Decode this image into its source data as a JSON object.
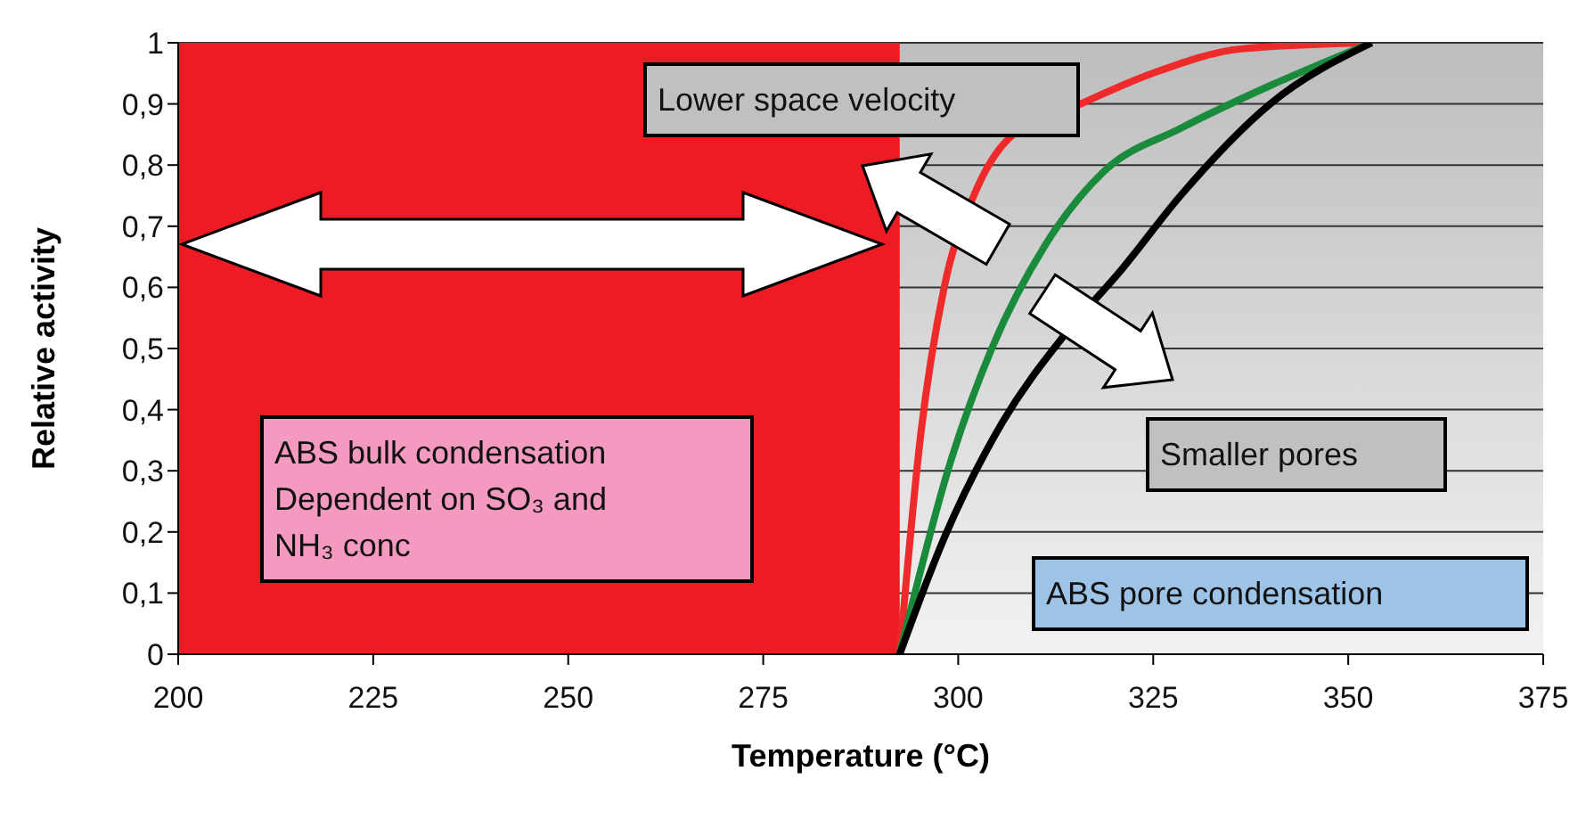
{
  "chart_data": {
    "type": "line",
    "xlabel": "Temperature (°C)",
    "ylabel": "Relative activity",
    "xlim": [
      200,
      375
    ],
    "xticks": [
      200,
      225,
      250,
      275,
      300,
      325,
      350,
      375
    ],
    "ylim": [
      0,
      1
    ],
    "yticks": [
      0,
      {
        "value": 0.1,
        "label": "0,1"
      },
      {
        "value": 0.2,
        "label": "0,2"
      },
      {
        "value": 0.3,
        "label": "0,3"
      },
      {
        "value": 0.4,
        "label": "0,4"
      },
      {
        "value": 0.5,
        "label": "0,5"
      },
      {
        "value": 0.6,
        "label": "0,6"
      },
      {
        "value": 0.7,
        "label": "0,7"
      },
      {
        "value": 0.8,
        "label": "0,8"
      },
      {
        "value": 0.9,
        "label": "0,9"
      },
      1
    ],
    "grid": "y",
    "marker": "none",
    "line_style": "solid",
    "series": [
      {
        "color": "#ee2a2a",
        "x": [
          292.5,
          295.2,
          298.2,
          302,
          306.6,
          315.7,
          324.9,
          336.3,
          353
        ],
        "values": [
          0,
          0.36,
          0.6,
          0.75,
          0.845,
          0.9,
          0.95,
          0.99,
          1
        ]
      },
      {
        "color": "#1a8a3c",
        "x": [
          292.5,
          298.9,
          304.3,
          311.2,
          318.7,
          328.5,
          340,
          353
        ],
        "values": [
          0,
          0.31,
          0.5,
          0.67,
          0.79,
          0.86,
          0.93,
          1
        ]
      },
      {
        "color": "#000000",
        "x": [
          292.5,
          298.2,
          305.7,
          313.5,
          321,
          328.5,
          340,
          353
        ],
        "values": [
          0,
          0.19,
          0.38,
          0.52,
          0.63,
          0.75,
          0.9,
          1
        ]
      }
    ],
    "bands": [
      {
        "axis": "x",
        "from": 200,
        "to": 292.5,
        "color": "#ed1c24"
      }
    ],
    "annotations": [
      "Lower space velocity",
      "ABS bulk condensation\nDependent on SO₃ and\nNH₃ conc",
      "Smaller pores",
      "ABS pore condensation"
    ]
  }
}
